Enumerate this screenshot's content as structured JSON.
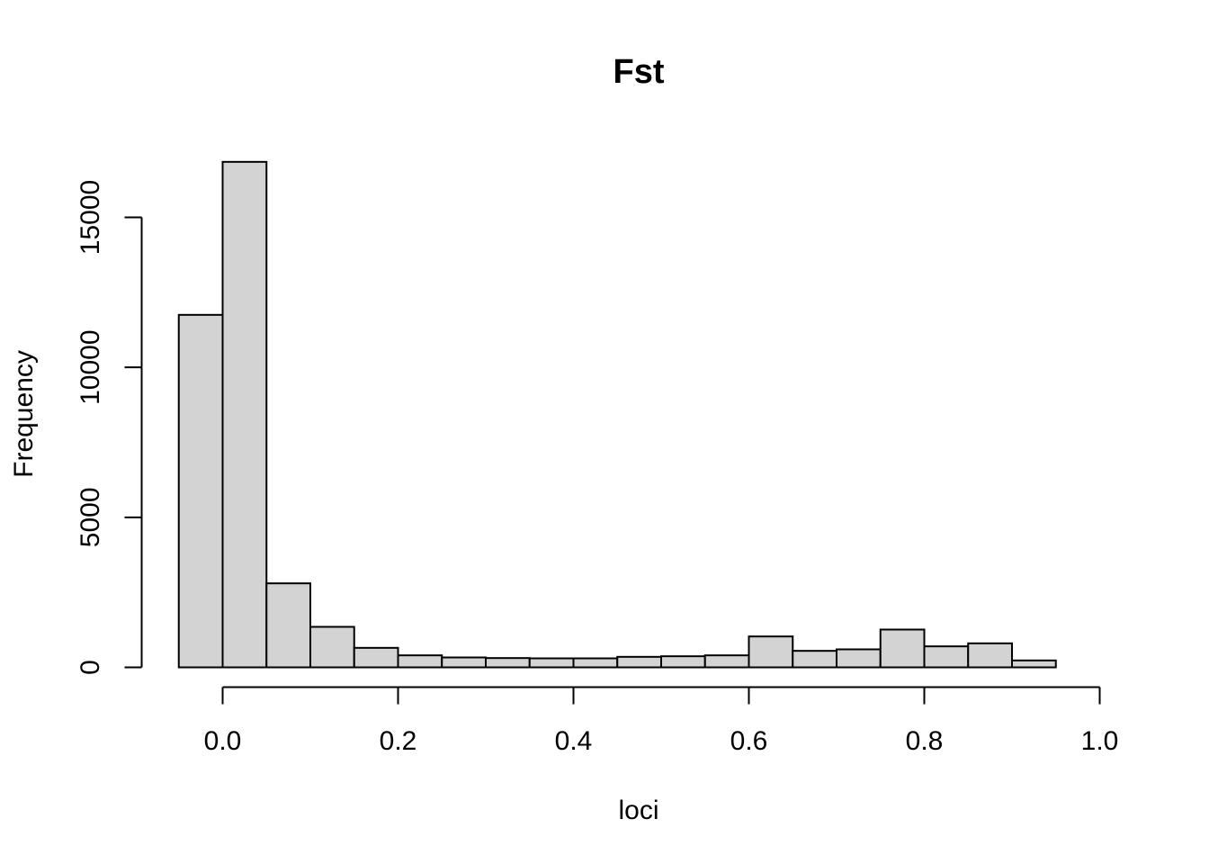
{
  "chart_data": {
    "type": "bar",
    "title": "Fst",
    "xlabel": "loci",
    "ylabel": "Frequency",
    "bin_width": 0.05,
    "bins": [
      {
        "x0": -0.05,
        "x1": 0.0,
        "value": 11750
      },
      {
        "x0": 0.0,
        "x1": 0.05,
        "value": 16850
      },
      {
        "x0": 0.05,
        "x1": 0.1,
        "value": 2800
      },
      {
        "x0": 0.1,
        "x1": 0.15,
        "value": 1350
      },
      {
        "x0": 0.15,
        "x1": 0.2,
        "value": 650
      },
      {
        "x0": 0.2,
        "x1": 0.25,
        "value": 400
      },
      {
        "x0": 0.25,
        "x1": 0.3,
        "value": 330
      },
      {
        "x0": 0.3,
        "x1": 0.35,
        "value": 310
      },
      {
        "x0": 0.35,
        "x1": 0.4,
        "value": 300
      },
      {
        "x0": 0.4,
        "x1": 0.45,
        "value": 300
      },
      {
        "x0": 0.45,
        "x1": 0.5,
        "value": 350
      },
      {
        "x0": 0.5,
        "x1": 0.55,
        "value": 370
      },
      {
        "x0": 0.55,
        "x1": 0.6,
        "value": 400
      },
      {
        "x0": 0.6,
        "x1": 0.65,
        "value": 1030
      },
      {
        "x0": 0.65,
        "x1": 0.7,
        "value": 550
      },
      {
        "x0": 0.7,
        "x1": 0.75,
        "value": 600
      },
      {
        "x0": 0.75,
        "x1": 0.8,
        "value": 1260
      },
      {
        "x0": 0.8,
        "x1": 0.85,
        "value": 700
      },
      {
        "x0": 0.85,
        "x1": 0.9,
        "value": 800
      },
      {
        "x0": 0.9,
        "x1": 0.95,
        "value": 230
      },
      {
        "x0": 0.95,
        "x1": 1.0,
        "value": 0
      }
    ],
    "x_ticks": [
      "0.0",
      "0.2",
      "0.4",
      "0.6",
      "0.8",
      "1.0"
    ],
    "y_ticks": [
      "0",
      "5000",
      "10000",
      "15000"
    ],
    "xlim": [
      -0.05,
      1.0
    ],
    "ylim": [
      0,
      16850
    ],
    "grid": false,
    "bar_fill": "#d3d3d3",
    "bar_stroke": "#000000"
  }
}
